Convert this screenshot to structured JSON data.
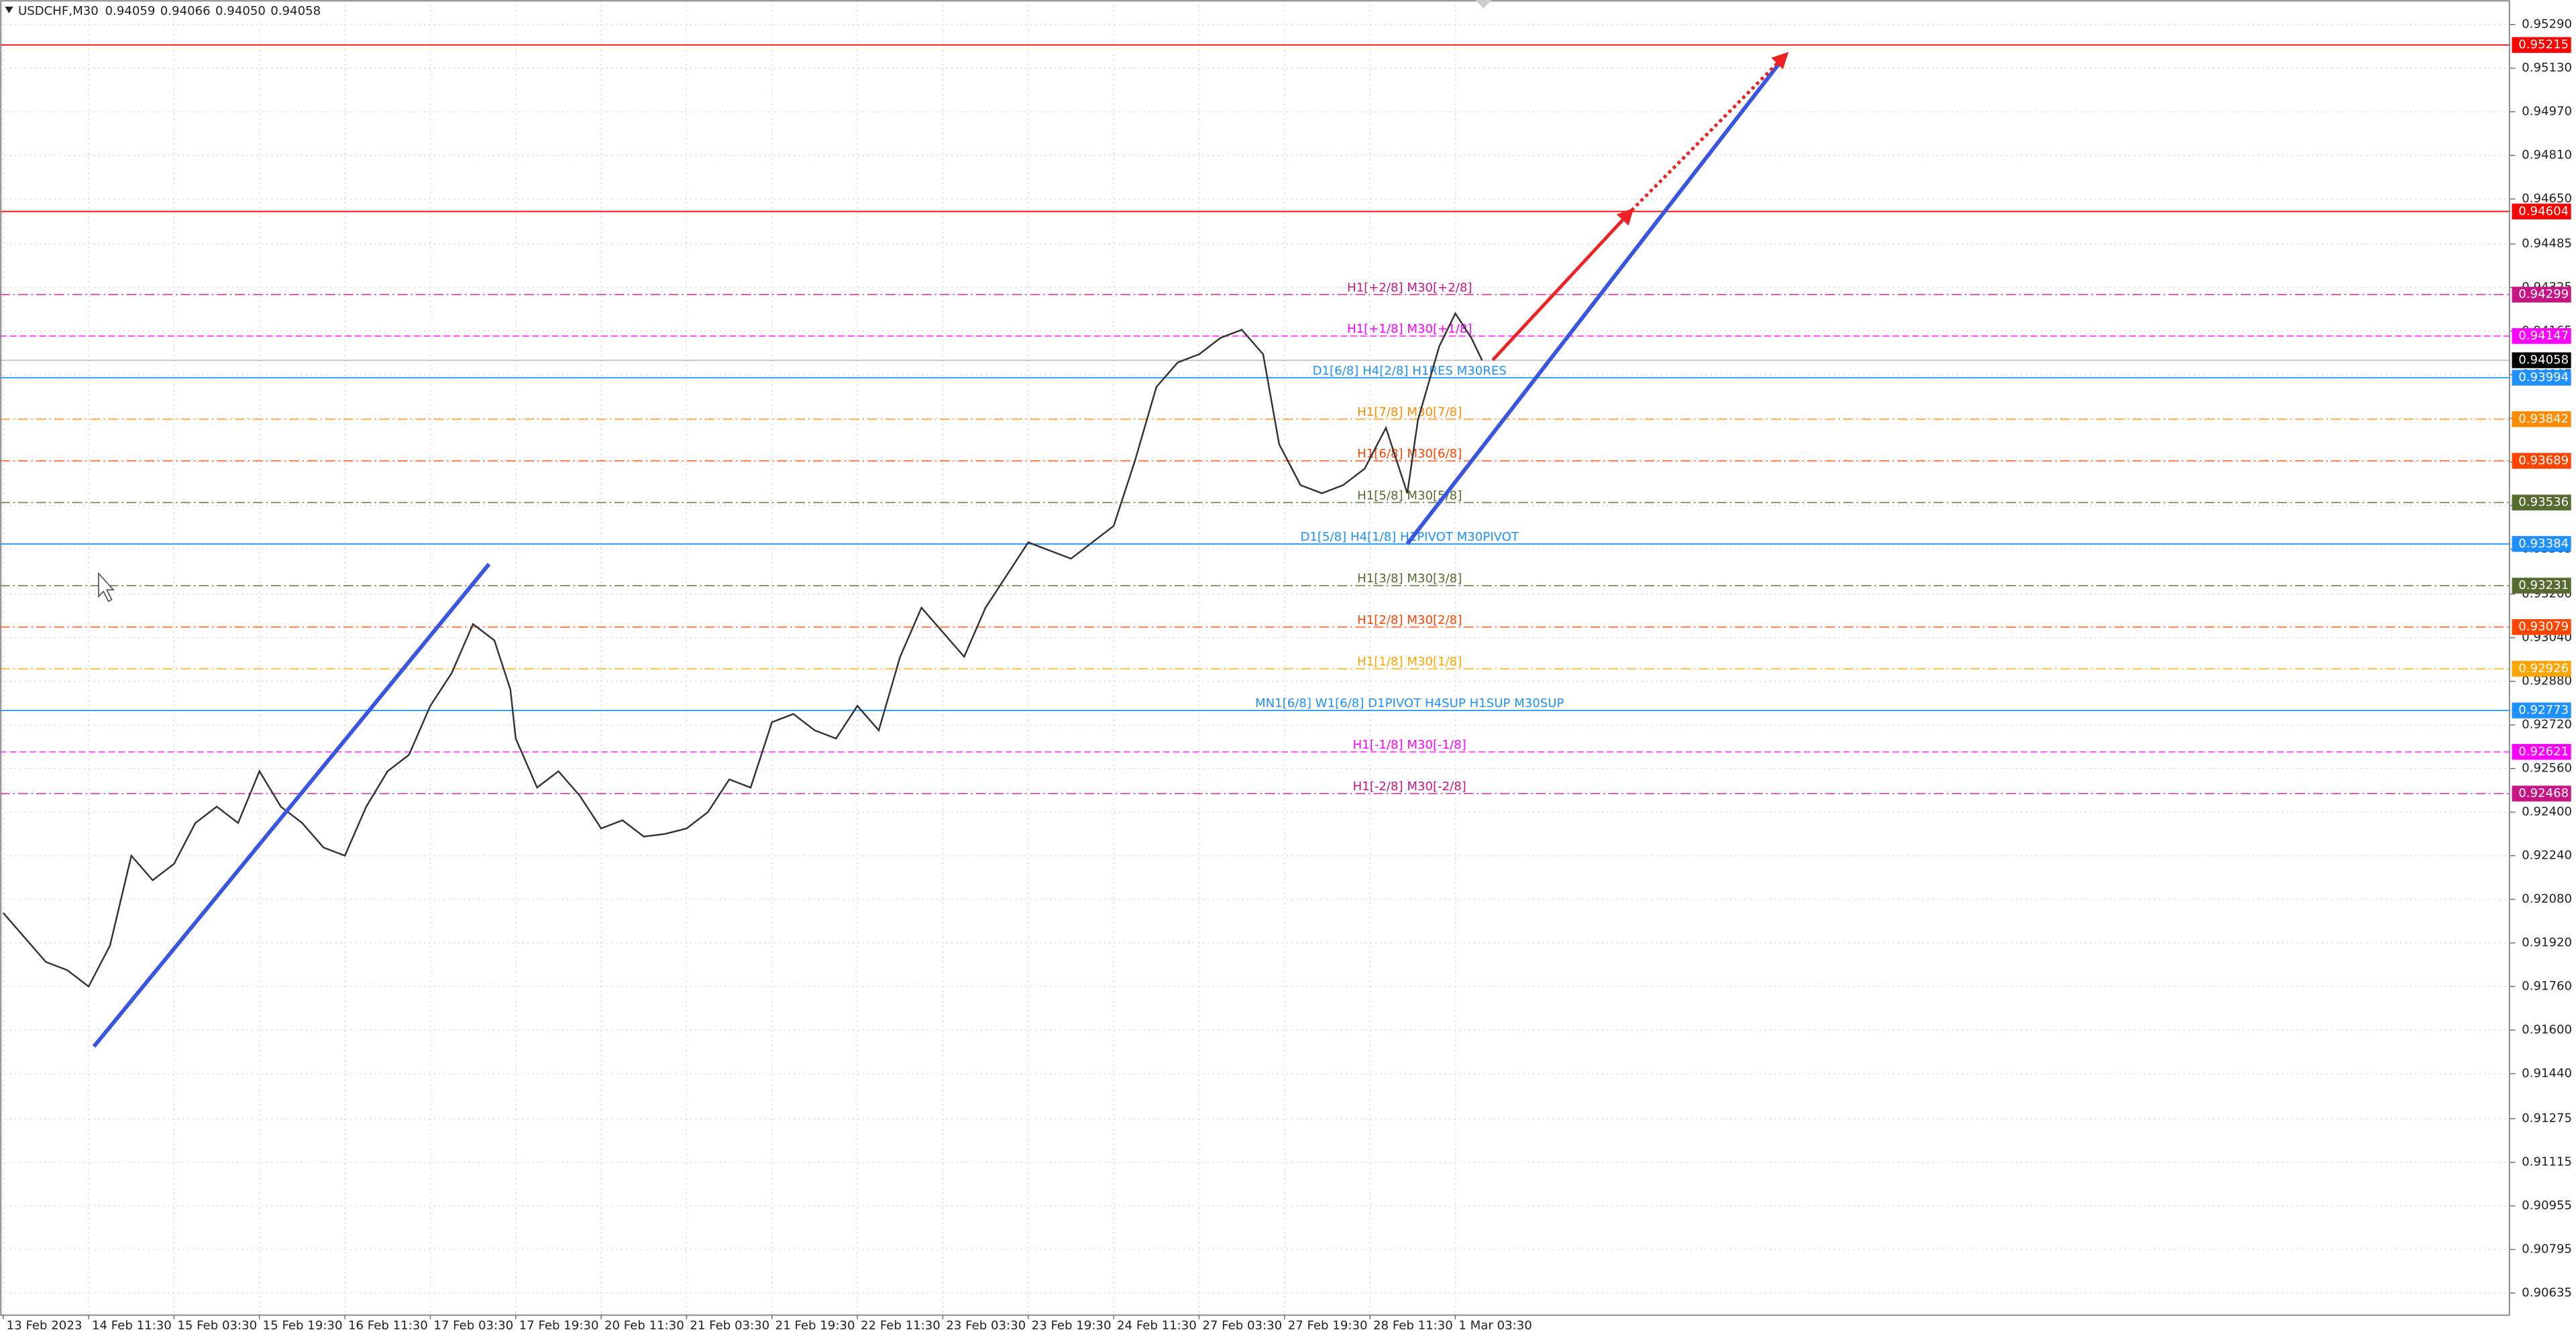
{
  "chart_data": {
    "type": "line",
    "title": "USDCHF,M30",
    "ohlc": [
      {
        "value": 0.94059,
        "label": "0.94059"
      },
      {
        "value": 0.94066,
        "label": "0.94066"
      },
      {
        "value": 0.9405,
        "label": "0.94050"
      },
      {
        "value": 0.94058,
        "label": "0.94058"
      }
    ],
    "grid": true,
    "xlim": [
      -0.6,
      469.6
    ],
    "ylim": [
      0.90557,
      0.9538
    ],
    "xticks": [
      {
        "value": 0,
        "label": "13 Feb 2023"
      },
      {
        "value": 16,
        "label": "14 Feb 11:30"
      },
      {
        "value": 32,
        "label": "15 Feb 03:30"
      },
      {
        "value": 48,
        "label": "15 Feb 19:30"
      },
      {
        "value": 64,
        "label": "16 Feb 11:30"
      },
      {
        "value": 80,
        "label": "17 Feb 03:30"
      },
      {
        "value": 96,
        "label": "17 Feb 19:30"
      },
      {
        "value": 112,
        "label": "20 Feb 11:30"
      },
      {
        "value": 128,
        "label": "21 Feb 03:30"
      },
      {
        "value": 144,
        "label": "21 Feb 19:30"
      },
      {
        "value": 160,
        "label": "22 Feb 11:30"
      },
      {
        "value": 176,
        "label": "23 Feb 03:30"
      },
      {
        "value": 192,
        "label": "23 Feb 19:30"
      },
      {
        "value": 208,
        "label": "24 Feb 11:30"
      },
      {
        "value": 224,
        "label": "27 Feb 03:30"
      },
      {
        "value": 240,
        "label": "27 Feb 19:30"
      },
      {
        "value": 256,
        "label": "28 Feb 11:30"
      },
      {
        "value": 272,
        "label": "1 Mar 03:30"
      }
    ],
    "yticks": [
      {
        "value": 0.9529,
        "label": "0.95290"
      },
      {
        "value": 0.9513,
        "label": "0.95130"
      },
      {
        "value": 0.9497,
        "label": "0.94970"
      },
      {
        "value": 0.9481,
        "label": "0.94810"
      },
      {
        "value": 0.9465,
        "label": "0.94650"
      },
      {
        "value": 0.94485,
        "label": "0.94485"
      },
      {
        "value": 0.94325,
        "label": "0.94325"
      },
      {
        "value": 0.94165,
        "label": "0.94165"
      },
      {
        "value": 0.94005,
        "label": "0.94005"
      },
      {
        "value": 0.93845,
        "label": "0.93845"
      },
      {
        "value": 0.93685,
        "label": "0.93685"
      },
      {
        "value": 0.93525,
        "label": "0.93525"
      },
      {
        "value": 0.93365,
        "label": "0.93365"
      },
      {
        "value": 0.932,
        "label": "0.93200"
      },
      {
        "value": 0.9304,
        "label": "0.93040"
      },
      {
        "value": 0.9288,
        "label": "0.92880"
      },
      {
        "value": 0.9272,
        "label": "0.92720"
      },
      {
        "value": 0.9256,
        "label": "0.92560"
      },
      {
        "value": 0.924,
        "label": "0.92400"
      },
      {
        "value": 0.9224,
        "label": "0.92240"
      },
      {
        "value": 0.9208,
        "label": "0.92080"
      },
      {
        "value": 0.9192,
        "label": "0.91920"
      },
      {
        "value": 0.9176,
        "label": "0.91760"
      },
      {
        "value": 0.916,
        "label": "0.91600"
      },
      {
        "value": 0.9144,
        "label": "0.91440"
      },
      {
        "value": 0.91275,
        "label": "0.91275"
      },
      {
        "value": 0.91115,
        "label": "0.91115"
      },
      {
        "value": 0.90955,
        "label": "0.90955"
      },
      {
        "value": 0.90795,
        "label": "0.90795"
      },
      {
        "value": 0.90635,
        "label": "0.90635"
      }
    ],
    "series": [
      {
        "name": "USDCHF",
        "color": "#333333",
        "x": [
          0,
          4,
          8,
          12,
          16,
          20,
          24,
          28,
          32,
          36,
          40,
          44,
          48,
          52,
          56,
          60,
          64,
          68,
          72,
          76,
          80,
          84,
          88,
          92,
          95,
          96,
          100,
          104,
          108,
          112,
          116,
          120,
          124,
          128,
          132,
          136,
          140,
          144,
          148,
          152,
          156,
          160,
          164,
          168,
          172,
          176,
          180,
          184,
          188,
          192,
          196,
          200,
          204,
          208,
          212,
          216,
          220,
          224,
          228,
          232,
          236,
          239,
          243,
          247,
          251,
          255,
          259,
          263,
          265,
          269,
          272,
          275,
          277
        ],
        "values": [
          0.9203,
          0.9194,
          0.9185,
          0.9182,
          0.9176,
          0.9191,
          0.9224,
          0.9215,
          0.9221,
          0.9236,
          0.9242,
          0.9236,
          0.9255,
          0.9242,
          0.9236,
          0.9227,
          0.9224,
          0.9242,
          0.9255,
          0.9261,
          0.9279,
          0.9291,
          0.9309,
          0.9303,
          0.9285,
          0.9267,
          0.9249,
          0.9255,
          0.9246,
          0.9234,
          0.9237,
          0.9231,
          0.9232,
          0.9234,
          0.924,
          0.9252,
          0.9249,
          0.9273,
          0.9276,
          0.927,
          0.9267,
          0.9279,
          0.927,
          0.9297,
          0.9315,
          0.9306,
          0.9297,
          0.9315,
          0.9327,
          0.9339,
          0.9336,
          0.9333,
          0.9339,
          0.9345,
          0.9369,
          0.9396,
          0.9405,
          0.9408,
          0.9414,
          0.9417,
          0.9408,
          0.9375,
          0.936,
          0.9357,
          0.936,
          0.9366,
          0.9381,
          0.9357,
          0.9384,
          0.9411,
          0.9423,
          0.9414,
          0.94058
        ]
      }
    ],
    "levels": [
      {
        "value": 0.95215,
        "color": "#ff0000",
        "style": "solid",
        "tag_color": "#ff0000"
      },
      {
        "value": 0.94604,
        "color": "#ff0000",
        "style": "solid",
        "tag_color": "#ff0000"
      },
      {
        "value": 0.94299,
        "color": "#c71585",
        "style": "dashdot",
        "tag_color": "#c71585",
        "text": "H1[+2/8] M30[+2/8]"
      },
      {
        "value": 0.94147,
        "color": "#ff00ff",
        "style": "dash",
        "tag_color": "#ff00ff",
        "text": "H1[+1/8] M30[+1/8]"
      },
      {
        "value": 0.94058,
        "color": "#c0c0c0",
        "style": "solid",
        "tag_color": "#000000"
      },
      {
        "value": 0.93994,
        "color": "#1e90ff",
        "style": "solid",
        "tag_color": "#1e90ff",
        "text": "D1[6/8] H4[2/8] H1RES M30RES"
      },
      {
        "value": 0.93842,
        "color": "#ff8c00",
        "style": "dashdot",
        "tag_color": "#ff8c00",
        "text": "H1[7/8] M30[7/8]"
      },
      {
        "value": 0.93689,
        "color": "#ff4500",
        "style": "dashdot",
        "tag_color": "#ff4500",
        "text": "H1[6/8] M30[6/8]"
      },
      {
        "value": 0.93536,
        "color": "#556b2f",
        "style": "dashdot",
        "tag_color": "#556b2f",
        "text": "H1[5/8] M30[5/8]"
      },
      {
        "value": 0.93384,
        "color": "#1e90ff",
        "style": "solid",
        "tag_color": "#1e90ff",
        "text": "D1[5/8] H4[1/8] H1PIVOT M30PIVOT"
      },
      {
        "value": 0.93231,
        "color": "#556b2f",
        "style": "dashdot",
        "tag_color": "#556b2f",
        "text": "H1[3/8] M30[3/8]"
      },
      {
        "value": 0.93079,
        "color": "#ff4500",
        "style": "dashdot",
        "tag_color": "#ff4500",
        "text": "H1[2/8] M30[2/8]"
      },
      {
        "value": 0.92926,
        "color": "#ffa500",
        "style": "dashdot",
        "tag_color": "#ffa500",
        "text": "H1[1/8] M30[1/8]"
      },
      {
        "value": 0.92773,
        "color": "#1e90ff",
        "style": "solid",
        "tag_color": "#1e90ff",
        "text": "MN1[6/8] W1[6/8] D1PIVOT H4SUP H1SUP M30SUP"
      },
      {
        "value": 0.92621,
        "color": "#ff00ff",
        "style": "dash",
        "tag_color": "#ff00ff",
        "text": "H1[-1/8] M30[-1/8]"
      },
      {
        "value": 0.92468,
        "color": "#c71585",
        "style": "dashdot",
        "tag_color": "#c71585",
        "text": "H1[-2/8] M30[-2/8]"
      }
    ],
    "drawings": [
      {
        "color": "#3a56e0",
        "style": "solid",
        "x": [
          17,
          91
        ],
        "y": [
          0.9154,
          0.9331
        ]
      },
      {
        "color": "#3a56e0",
        "style": "solid",
        "x": [
          263,
          334
        ],
        "y": [
          0.93384,
          0.95181
        ]
      },
      {
        "color": "#ee2222",
        "style": "arrow",
        "x": [
          279,
          305
        ],
        "y": [
          0.94059,
          0.94608
        ]
      },
      {
        "color": "#ee2222",
        "style": "dotted-arrow",
        "x": [
          305,
          334
        ],
        "y": [
          0.94608,
          0.95181
        ]
      }
    ]
  }
}
